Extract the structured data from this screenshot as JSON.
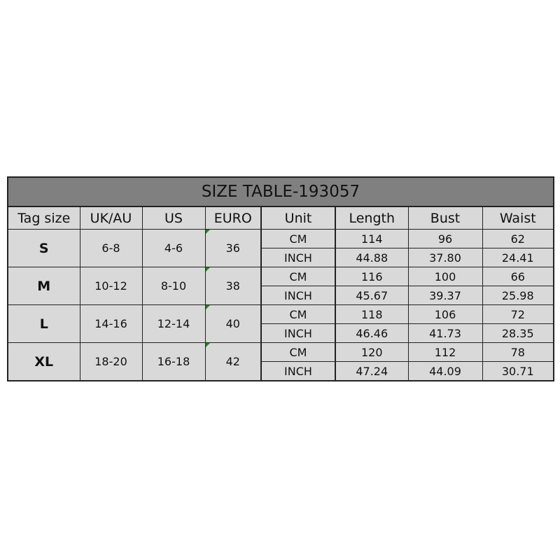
{
  "title": "SIZE TABLE-193057",
  "headers": [
    "Tag size",
    "UK/AU",
    "US",
    "EURO",
    "Unit",
    "Length",
    "Bust",
    "Waist"
  ],
  "rows": [
    {
      "tag": "S",
      "uk": "6-8",
      "us": "4-6",
      "euro": "36",
      "cm": {
        "unit": "CM",
        "length": "114",
        "bust": "96",
        "waist": "62"
      },
      "inch": {
        "unit": "INCH",
        "length": "44.88",
        "bust": "37.80",
        "waist": "24.41"
      }
    },
    {
      "tag": "M",
      "uk": "10-12",
      "us": "8-10",
      "euro": "38",
      "cm": {
        "unit": "CM",
        "length": "116",
        "bust": "100",
        "waist": "66"
      },
      "inch": {
        "unit": "INCH",
        "length": "45.67",
        "bust": "39.37",
        "waist": "25.98"
      }
    },
    {
      "tag": "L",
      "uk": "14-16",
      "us": "12-14",
      "euro": "40",
      "cm": {
        "unit": "CM",
        "length": "118",
        "bust": "106",
        "waist": "72"
      },
      "inch": {
        "unit": "INCH",
        "length": "46.46",
        "bust": "41.73",
        "waist": "28.35"
      }
    },
    {
      "tag": "XL",
      "uk": "18-20",
      "us": "16-18",
      "euro": "42",
      "cm": {
        "unit": "CM",
        "length": "120",
        "bust": "112",
        "waist": "78"
      },
      "inch": {
        "unit": "INCH",
        "length": "47.24",
        "bust": "44.09",
        "waist": "30.71"
      }
    }
  ],
  "colors": {
    "title_bg": "#808080",
    "cell_bg": "#d9d9d9",
    "border": "#222222",
    "comment_marker": "#1a8a1a"
  }
}
